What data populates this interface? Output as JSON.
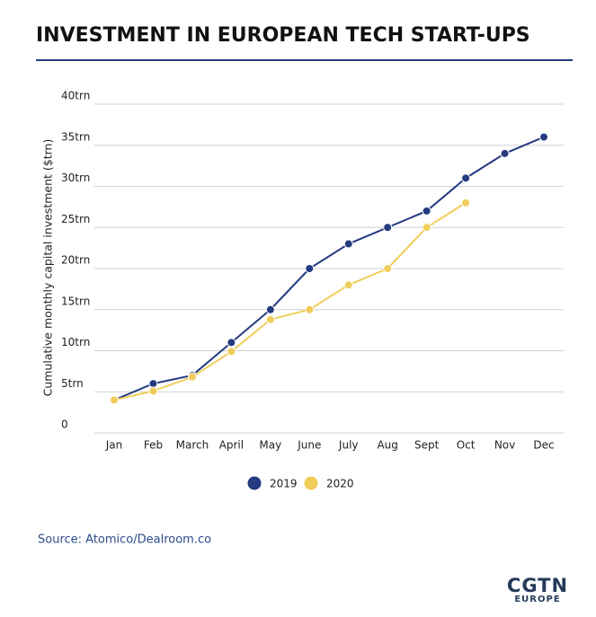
{
  "chart_data": {
    "type": "line",
    "title": "INVESTMENT IN EUROPEAN TECH START-UPS",
    "y_label": "Cumulative monthly capital investment ($trn)",
    "source": "Source: Atomico/Dealroom.co",
    "logo": {
      "main": "CGTN",
      "sub": "EUROPE"
    },
    "categories": [
      "Jan",
      "Feb",
      "March",
      "April",
      "May",
      "June",
      "July",
      "Aug",
      "Sept",
      "Oct",
      "Nov",
      "Dec"
    ],
    "series": [
      {
        "name": "2019",
        "color": "#253a80",
        "values": [
          4,
          6,
          7,
          11,
          15,
          20,
          23,
          25,
          27,
          31,
          34,
          36
        ]
      },
      {
        "name": "2020",
        "color": "#f0cd5a",
        "values": [
          4,
          5.1,
          6.8,
          9.9,
          13.8,
          15,
          18,
          20,
          25,
          28,
          null,
          null
        ]
      }
    ],
    "ylim": [
      0,
      40
    ],
    "yticks": [
      0,
      {
        "value": 5,
        "label": "5trn"
      },
      {
        "value": 10,
        "label": "10trn"
      },
      {
        "value": 15,
        "label": "15trn"
      },
      {
        "value": 20,
        "label": "20trn"
      },
      {
        "value": 25,
        "label": "25trn"
      },
      {
        "value": 30,
        "label": "30trn"
      },
      {
        "value": 35,
        "label": "35trn"
      },
      {
        "value": 40,
        "label": "40trn"
      }
    ],
    "grid": true,
    "legend": "bottom"
  }
}
